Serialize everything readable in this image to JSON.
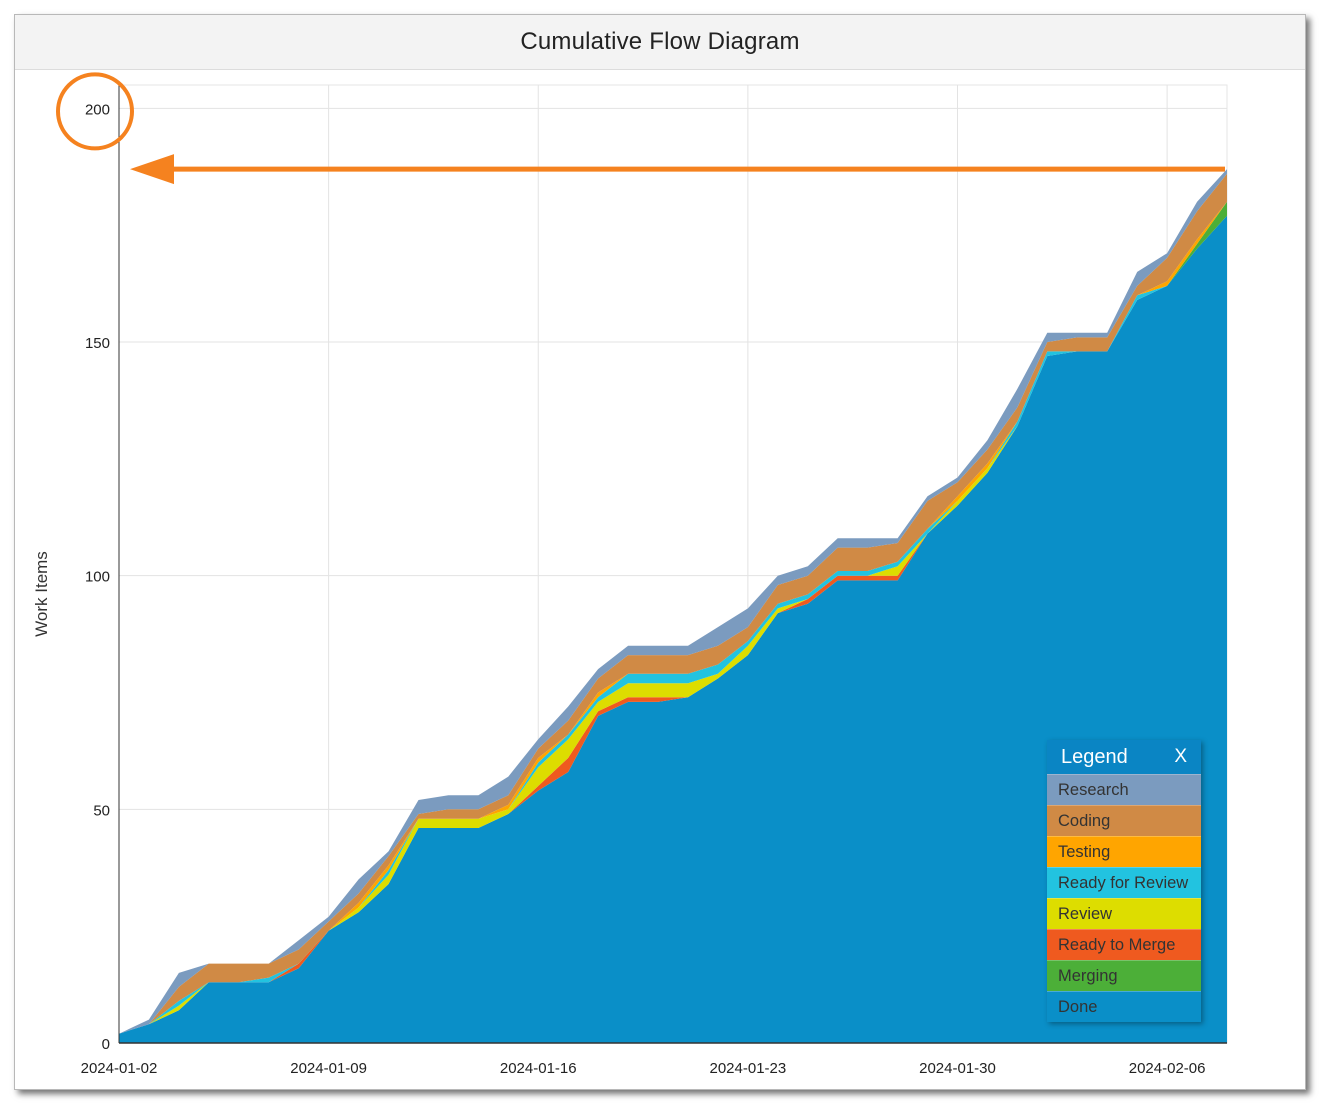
{
  "card": {
    "title": "Cumulative Flow Diagram"
  },
  "legend": {
    "title": "Legend",
    "close_label": "X",
    "items": [
      {
        "label": "Research",
        "color": "#7b9bbf"
      },
      {
        "label": "Coding",
        "color": "#d08a45"
      },
      {
        "label": "Testing",
        "color": "#ffa500"
      },
      {
        "label": "Ready for Review",
        "color": "#22c3e0"
      },
      {
        "label": "Review",
        "color": "#dddd00"
      },
      {
        "label": "Ready to Merge",
        "color": "#ef5a1f"
      },
      {
        "label": "Merging",
        "color": "#4caf38"
      },
      {
        "label": "Done",
        "color": "#0a8fc8"
      }
    ]
  },
  "annotation": {
    "color": "#f5821f",
    "highlighted_tick": "200"
  },
  "chart_data": {
    "type": "area",
    "stacked": true,
    "title": "Cumulative Flow Diagram",
    "ylabel": "Work Items",
    "xlabel": "",
    "ylim": [
      0,
      205
    ],
    "yticks": [
      0,
      50,
      100,
      150,
      200
    ],
    "xlim": [
      "2024-01-02",
      "2024-02-08"
    ],
    "xticks": [
      "2024-01-02",
      "2024-01-09",
      "2024-01-16",
      "2024-01-23",
      "2024-01-30",
      "2024-02-06"
    ],
    "grid": true,
    "legend_position": "bottom-right",
    "x": [
      "2024-01-02",
      "2024-01-03",
      "2024-01-04",
      "2024-01-05",
      "2024-01-06",
      "2024-01-07",
      "2024-01-08",
      "2024-01-09",
      "2024-01-10",
      "2024-01-11",
      "2024-01-12",
      "2024-01-13",
      "2024-01-14",
      "2024-01-15",
      "2024-01-16",
      "2024-01-17",
      "2024-01-18",
      "2024-01-19",
      "2024-01-20",
      "2024-01-21",
      "2024-01-22",
      "2024-01-23",
      "2024-01-24",
      "2024-01-25",
      "2024-01-26",
      "2024-01-27",
      "2024-01-28",
      "2024-01-29",
      "2024-01-30",
      "2024-01-31",
      "2024-02-01",
      "2024-02-02",
      "2024-02-03",
      "2024-02-04",
      "2024-02-05",
      "2024-02-06",
      "2024-02-07",
      "2024-02-08"
    ],
    "series": [
      {
        "name": "Done",
        "values": [
          2,
          4,
          7,
          13,
          13,
          13,
          16,
          24,
          28,
          34,
          46,
          46,
          46,
          49,
          54,
          58,
          70,
          73,
          73,
          74,
          78,
          83,
          92,
          94,
          99,
          99,
          99,
          109,
          115,
          122,
          132,
          147,
          148,
          148,
          159,
          162,
          170,
          177
        ]
      },
      {
        "name": "Merging",
        "values": [
          0,
          0,
          0,
          0,
          0,
          0,
          0,
          0,
          0,
          0,
          0,
          0,
          0,
          0,
          0,
          0,
          0,
          0,
          0,
          0,
          0,
          0,
          0,
          0,
          0,
          0,
          0,
          0,
          0,
          0,
          0,
          0,
          0,
          0,
          0,
          0,
          1,
          3
        ]
      },
      {
        "name": "Ready to Merge",
        "values": [
          0,
          0,
          0,
          0,
          0,
          0,
          1,
          0,
          0,
          0,
          0,
          0,
          0,
          0,
          1,
          3,
          1,
          1,
          1,
          0,
          0,
          0,
          0,
          1,
          1,
          1,
          1,
          0,
          0,
          0,
          0,
          0,
          0,
          0,
          0,
          0,
          0,
          0
        ]
      },
      {
        "name": "Review",
        "values": [
          0,
          0,
          1,
          0,
          0,
          0,
          0,
          0,
          1,
          2,
          2,
          2,
          2,
          1,
          4,
          4,
          2,
          3,
          3,
          3,
          1,
          2,
          1,
          0,
          0,
          0,
          2,
          0,
          1,
          1,
          0,
          0,
          0,
          0,
          0,
          0,
          0,
          0
        ]
      },
      {
        "name": "Ready for Review",
        "values": [
          0,
          0,
          1,
          0,
          0,
          1,
          0,
          0,
          0,
          1,
          0,
          0,
          0,
          0,
          1,
          1,
          1,
          2,
          2,
          2,
          2,
          1,
          1,
          1,
          1,
          1,
          1,
          1,
          0,
          0,
          1,
          1,
          0,
          0,
          1,
          0,
          0,
          0
        ]
      },
      {
        "name": "Testing",
        "values": [
          0,
          0,
          0,
          0,
          0,
          0,
          0,
          0,
          1,
          1,
          0,
          0,
          0,
          1,
          1,
          0,
          1,
          0,
          0,
          0,
          0,
          0,
          0,
          0,
          0,
          0,
          0,
          0,
          1,
          1,
          0,
          0,
          0,
          0,
          0,
          1,
          1,
          0
        ]
      },
      {
        "name": "Coding",
        "values": [
          0,
          0,
          3,
          4,
          4,
          3,
          3,
          2,
          2,
          2,
          1,
          2,
          2,
          2,
          2,
          3,
          3,
          4,
          4,
          4,
          4,
          3,
          4,
          4,
          5,
          5,
          4,
          6,
          3,
          3,
          3,
          2,
          3,
          3,
          2,
          5,
          6,
          6
        ]
      },
      {
        "name": "Research",
        "values": [
          0,
          1,
          3,
          0,
          0,
          0,
          2,
          1,
          3,
          1,
          3,
          3,
          3,
          4,
          2,
          3,
          2,
          2,
          2,
          2,
          4,
          4,
          2,
          2,
          2,
          2,
          1,
          1,
          1,
          2,
          4,
          2,
          1,
          1,
          3,
          1,
          2,
          1
        ]
      }
    ]
  }
}
